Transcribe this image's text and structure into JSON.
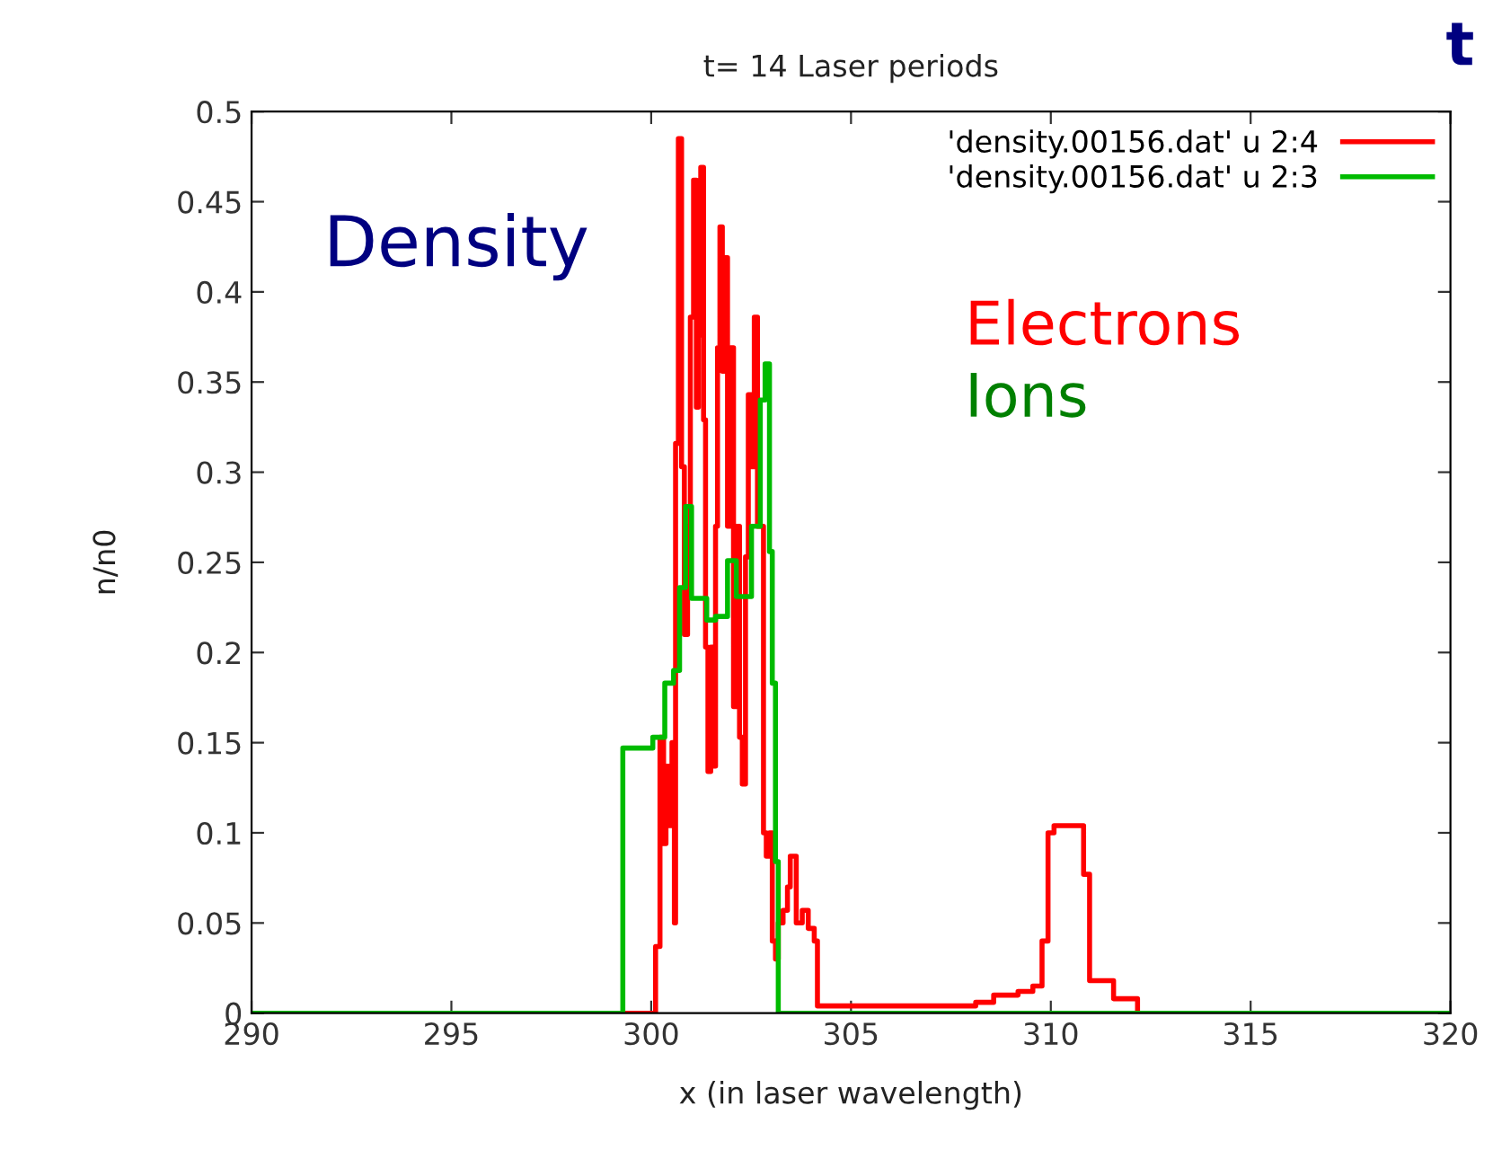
{
  "chart_data": {
    "type": "step",
    "title": "t= 14 Laser periods",
    "xlabel": "x (in laser wavelength)",
    "ylabel": "n/n0",
    "annotations": [
      "Density",
      "Electrons",
      "Ions",
      "t"
    ],
    "xlim": [
      290,
      320
    ],
    "xticks": [
      290,
      295,
      300,
      305,
      310,
      315,
      320
    ],
    "ylim": [
      0,
      0.5
    ],
    "yticks": [
      0,
      0.05,
      0.1,
      0.15,
      0.2,
      0.25,
      0.3,
      0.35,
      0.4,
      0.45,
      0.5
    ],
    "grid": false,
    "legend": "top right",
    "line_style": "solid",
    "marker": "none",
    "series": [
      {
        "name": "'density.00156.dat' u 2:4",
        "color": "#ff0000",
        "x": [
          290,
          300.04,
          300.11,
          300.22,
          300.31,
          300.37,
          300.46,
          300.52,
          300.58,
          300.61,
          300.68,
          300.76,
          300.83,
          300.91,
          300.98,
          301.06,
          301.13,
          301.18,
          301.24,
          301.31,
          301.36,
          301.42,
          301.49,
          301.54,
          301.61,
          301.66,
          301.72,
          301.78,
          301.84,
          301.91,
          301.99,
          302.06,
          302.13,
          302.21,
          302.28,
          302.36,
          302.43,
          302.51,
          302.58,
          302.66,
          302.81,
          302.88,
          302.96,
          303.03,
          303.11,
          303.18,
          303.3,
          303.41,
          303.48,
          303.63,
          303.78,
          303.93,
          304.08,
          304.16,
          305.58,
          308.12,
          308.57,
          309.18,
          309.55,
          309.78,
          309.93,
          310.08,
          310.67,
          310.82,
          310.97,
          311.57,
          312.17,
          320
        ],
        "values": [
          0,
          0,
          0.037,
          0.153,
          0.094,
          0.137,
          0.104,
          0.15,
          0.05,
          0.316,
          0.485,
          0.303,
          0.21,
          0.27,
          0.386,
          0.462,
          0.336,
          0.376,
          0.469,
          0.329,
          0.203,
          0.134,
          0.203,
          0.137,
          0.27,
          0.369,
          0.436,
          0.356,
          0.419,
          0.27,
          0.369,
          0.17,
          0.27,
          0.153,
          0.127,
          0.253,
          0.343,
          0.303,
          0.386,
          0.27,
          0.1,
          0.087,
          0.1,
          0.04,
          0.03,
          0.05,
          0.057,
          0.07,
          0.087,
          0.05,
          0.057,
          0.047,
          0.04,
          0.004,
          0.004,
          0.006,
          0.01,
          0.012,
          0.015,
          0.04,
          0.1,
          0.104,
          0.104,
          0.077,
          0.018,
          0.008,
          0,
          0
        ]
      },
      {
        "name": "'density.00156.dat' u 2:3",
        "color": "#00bb00",
        "x": [
          290,
          299.29,
          299.44,
          300.04,
          300.34,
          300.56,
          300.71,
          300.86,
          301.01,
          301.39,
          301.61,
          301.91,
          302.13,
          302.51,
          302.73,
          302.85,
          302.96,
          303.03,
          303.11,
          303.18,
          320
        ],
        "values": [
          0,
          0.147,
          0.147,
          0.153,
          0.183,
          0.19,
          0.236,
          0.281,
          0.23,
          0.218,
          0.22,
          0.251,
          0.231,
          0.27,
          0.34,
          0.36,
          0.256,
          0.183,
          0.084,
          0,
          0
        ]
      }
    ]
  }
}
